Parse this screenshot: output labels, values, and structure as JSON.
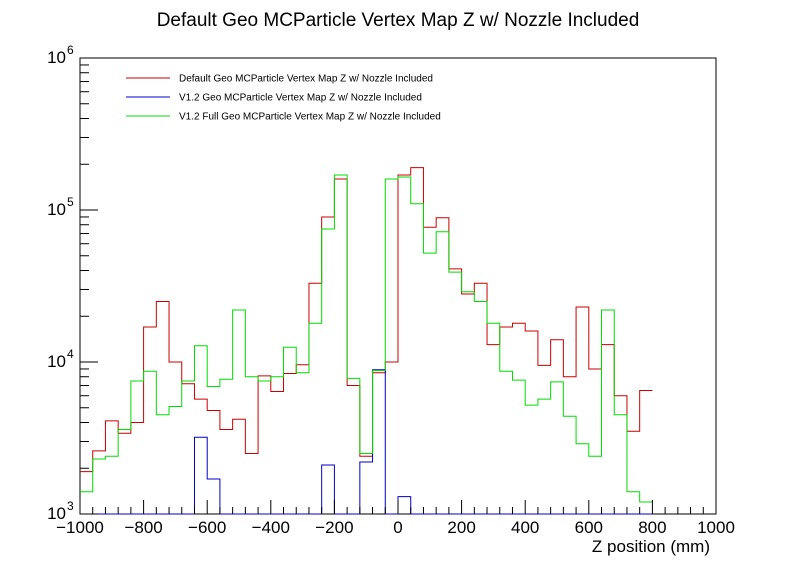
{
  "chart_data": {
    "type": "line",
    "title": "Default Geo MCParticle Vertex Map Z w/ Nozzle Included",
    "xlabel": "Z position (mm)",
    "ylabel": "",
    "xlim": [
      -1000,
      1000
    ],
    "ylim": [
      1000,
      1000000
    ],
    "yscale": "log",
    "grid": false,
    "legend_position": "top-left",
    "x_ticks": [
      "−1000",
      "−800",
      "−600",
      "−400",
      "−200",
      "0",
      "200",
      "400",
      "600",
      "800",
      "1000"
    ],
    "y_ticks": [
      {
        "base": "10",
        "exp": "3"
      },
      {
        "base": "10",
        "exp": "4"
      },
      {
        "base": "10",
        "exp": "5"
      },
      {
        "base": "10",
        "exp": "6"
      }
    ],
    "bin_edges_start": -1000,
    "bin_width": 40,
    "series": [
      {
        "name": "Default Geo MCParticle Vertex Map Z w/ Nozzle Included",
        "color": "#cc0000",
        "values": [
          1900,
          2600,
          4100,
          3400,
          4000,
          17000,
          25000,
          10000,
          7200,
          5700,
          4800,
          3600,
          4200,
          2500,
          8100,
          6400,
          8400,
          9600,
          33000,
          90000,
          160000,
          7000,
          2400,
          8500,
          10000,
          170000,
          190000,
          77000,
          89000,
          41000,
          28000,
          33000,
          13000,
          17000,
          18000,
          16000,
          9500,
          14000,
          8000,
          23000,
          9000,
          13000,
          6000,
          3500,
          6500
        ]
      },
      {
        "name": "V1.2 Geo MCParticle Vertex Map Z w/ Nozzle Included",
        "color": "#0000cc",
        "values": [
          0,
          0,
          0,
          0,
          0,
          0,
          0,
          0,
          0,
          3200,
          1700,
          0,
          0,
          0,
          0,
          0,
          0,
          0,
          0,
          2100,
          0,
          0,
          2200,
          8900,
          0,
          1300,
          0,
          0,
          0,
          0,
          0,
          0,
          0,
          0,
          0,
          0,
          0,
          0,
          0,
          0,
          0,
          0,
          0,
          0,
          0
        ]
      },
      {
        "name": "V1.2 Full Geo MCParticle Vertex Map Z w/ Nozzle Included",
        "color": "#00dd00",
        "values": [
          1400,
          2300,
          2400,
          3600,
          7500,
          8700,
          4500,
          5100,
          7500,
          12800,
          6900,
          7700,
          22000,
          8000,
          7500,
          8000,
          12500,
          8500,
          18000,
          75000,
          170000,
          7800,
          2500,
          8800,
          160000,
          165000,
          110000,
          52000,
          72000,
          39000,
          29000,
          25000,
          18000,
          8700,
          7600,
          5200,
          5700,
          7400,
          4400,
          2900,
          2400,
          22000,
          4500,
          1400,
          1200
        ]
      }
    ]
  }
}
